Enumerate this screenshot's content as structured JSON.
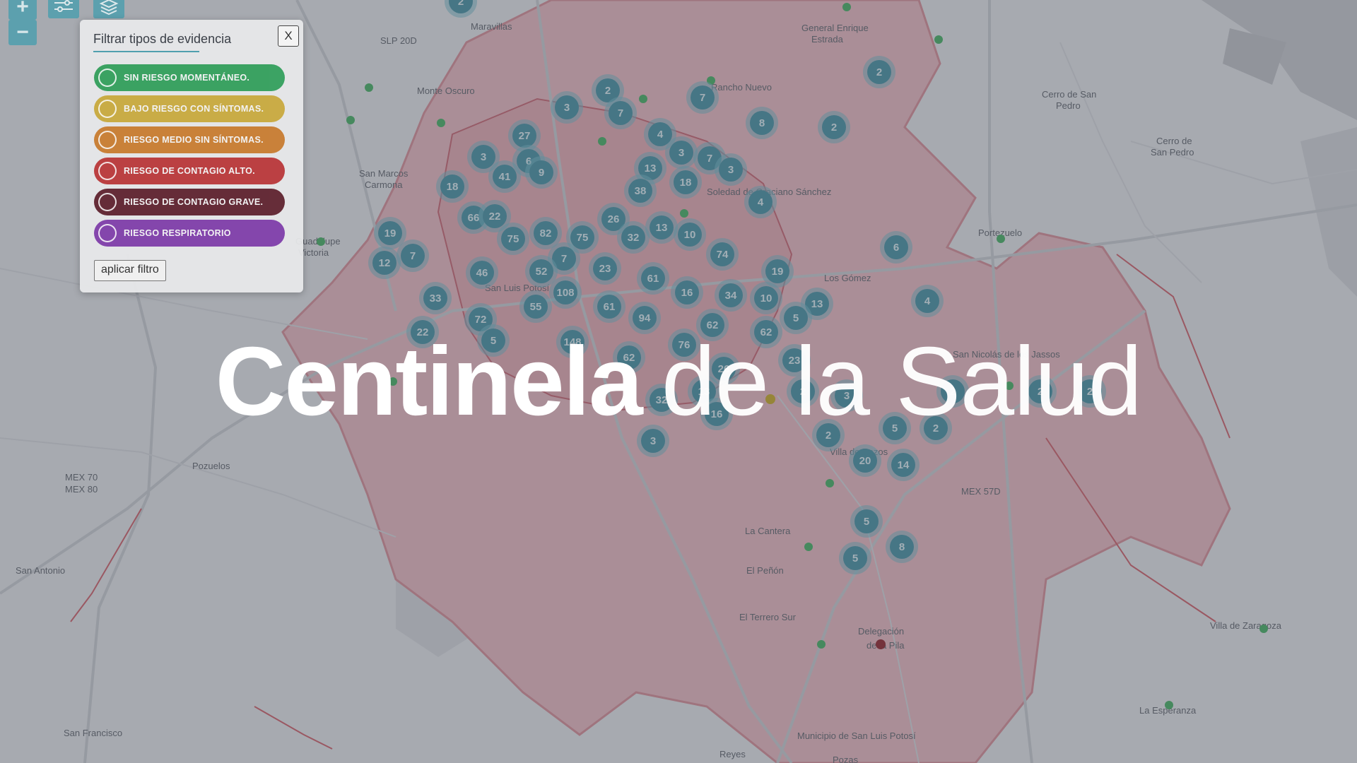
{
  "map": {
    "place_labels": [
      {
        "text": "Maravillas"
      },
      {
        "text": "SLP 20D"
      },
      {
        "text": "Monte Oscuro"
      },
      {
        "text": "General Enrique"
      },
      {
        "text": "Estrada"
      },
      {
        "text": "Cerro de San"
      },
      {
        "text": "Pedro"
      },
      {
        "text": "Cerro de"
      },
      {
        "text": "San Pedro"
      },
      {
        "text": "San Marcos"
      },
      {
        "text": "Carmona"
      },
      {
        "text": "Guadalupe"
      },
      {
        "text": "Victoria"
      },
      {
        "text": "Portezuelo"
      },
      {
        "text": "Los Gómez"
      },
      {
        "text": "Pozuelos"
      },
      {
        "text": "MEX 70"
      },
      {
        "text": "MEX 80"
      },
      {
        "text": "MEX 57D"
      },
      {
        "text": "San Antonio"
      },
      {
        "text": "La Cantera"
      },
      {
        "text": "El Peñón"
      },
      {
        "text": "El Terrero Sur"
      },
      {
        "text": "Delegación"
      },
      {
        "text": "de la Pila"
      },
      {
        "text": "Villa de Zaragoza"
      },
      {
        "text": "La Esperanza"
      },
      {
        "text": "San Francisco"
      },
      {
        "text": "Villa de Pozos"
      },
      {
        "text": "San Luis Potosí"
      },
      {
        "text": "Rancho Nuevo"
      },
      {
        "text": "Soledad de Graciano Sánchez"
      },
      {
        "text": "San Nicolás de los Jassos"
      },
      {
        "text": "Municipio de San Luis Potosí"
      },
      {
        "text": "Reyes"
      },
      {
        "text": "Pozas"
      }
    ],
    "clusters": [
      {
        "count": "2"
      },
      {
        "count": "2"
      },
      {
        "count": "7"
      },
      {
        "count": "3"
      },
      {
        "count": "7"
      },
      {
        "count": "2"
      },
      {
        "count": "8"
      },
      {
        "count": "2"
      },
      {
        "count": "27"
      },
      {
        "count": "4"
      },
      {
        "count": "3"
      },
      {
        "count": "6"
      },
      {
        "count": "3"
      },
      {
        "count": "7"
      },
      {
        "count": "13"
      },
      {
        "count": "41"
      },
      {
        "count": "9"
      },
      {
        "count": "3"
      },
      {
        "count": "18"
      },
      {
        "count": "38"
      },
      {
        "count": "18"
      },
      {
        "count": "4"
      },
      {
        "count": "66"
      },
      {
        "count": "22"
      },
      {
        "count": "26"
      },
      {
        "count": "13"
      },
      {
        "count": "19"
      },
      {
        "count": "82"
      },
      {
        "count": "75"
      },
      {
        "count": "32"
      },
      {
        "count": "10"
      },
      {
        "count": "6"
      },
      {
        "count": "75"
      },
      {
        "count": "74"
      },
      {
        "count": "7"
      },
      {
        "count": "12"
      },
      {
        "count": "7"
      },
      {
        "count": "46"
      },
      {
        "count": "52"
      },
      {
        "count": "23"
      },
      {
        "count": "61"
      },
      {
        "count": "19"
      },
      {
        "count": "4"
      },
      {
        "count": "33"
      },
      {
        "count": "108"
      },
      {
        "count": "16"
      },
      {
        "count": "34"
      },
      {
        "count": "10"
      },
      {
        "count": "13"
      },
      {
        "count": "55"
      },
      {
        "count": "61"
      },
      {
        "count": "72"
      },
      {
        "count": "94"
      },
      {
        "count": "62"
      },
      {
        "count": "5"
      },
      {
        "count": "62"
      },
      {
        "count": "22"
      },
      {
        "count": "5"
      },
      {
        "count": "148"
      },
      {
        "count": "76"
      },
      {
        "count": "62"
      },
      {
        "count": "26"
      },
      {
        "count": "23"
      },
      {
        "count": "2"
      },
      {
        "count": "13"
      },
      {
        "count": "32"
      },
      {
        "count": "3"
      },
      {
        "count": "2"
      },
      {
        "count": "2"
      },
      {
        "count": "2"
      },
      {
        "count": "16"
      },
      {
        "count": "5"
      },
      {
        "count": "2"
      },
      {
        "count": "2"
      },
      {
        "count": "3"
      },
      {
        "count": "20"
      },
      {
        "count": "14"
      },
      {
        "count": "5"
      },
      {
        "count": "8"
      },
      {
        "count": "5"
      }
    ],
    "marker_colors": {
      "low": "#3fae5c",
      "mid": "#c9a81b",
      "high": "#8e1b22"
    }
  },
  "controls": {
    "zoom_in": "+",
    "zoom_out": "−"
  },
  "filter_panel": {
    "title": "Filtrar tipos de evidencia",
    "close_label": "X",
    "apply_label": "aplicar filtro",
    "options": [
      {
        "label": "SIN RIESGO MOMENTÁNEO.",
        "color": "#2f9e59"
      },
      {
        "label": "BAJO RIESGO CON SÍNTOMAS.",
        "color": "#c8a83a"
      },
      {
        "label": "RIESGO MEDIO SIN SÍNTOMAS.",
        "color": "#c77a2c"
      },
      {
        "label": "RIESGO DE CONTAGIO ALTO.",
        "color": "#b83436"
      },
      {
        "label": "RIESGO DE CONTAGIO GRAVE.",
        "color": "#5c1f2b"
      },
      {
        "label": "RIESGO RESPIRATORIO",
        "color": "#7d3aa8"
      }
    ]
  },
  "hero": {
    "bold": "Centinela",
    "light": "de la Salud"
  }
}
